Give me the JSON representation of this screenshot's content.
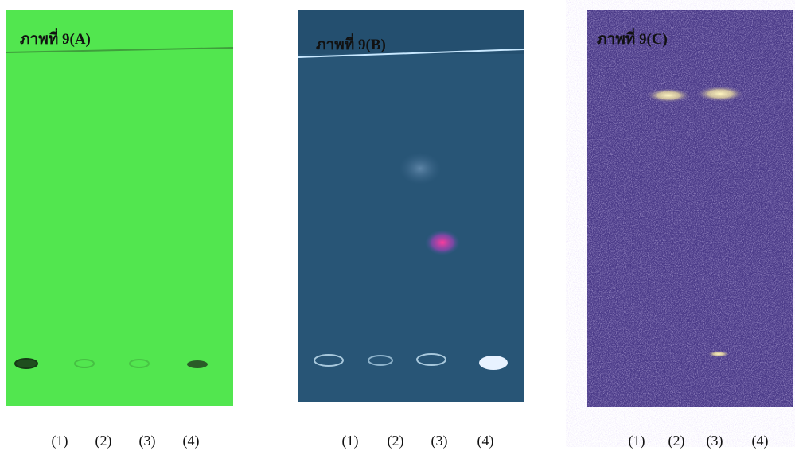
{
  "panels": [
    {
      "label": "ภาพที่ 9(A)",
      "lanes": [
        "(1)",
        "(2)",
        "(3)",
        "(4)"
      ]
    },
    {
      "label": "ภาพที่ 9(B)",
      "lanes": [
        "(1)",
        "(2)",
        "(3)",
        "(4)"
      ]
    },
    {
      "label": "ภาพที่ 9(C)",
      "lanes": [
        "(1)",
        "(2)",
        "(3)",
        "(4)"
      ]
    }
  ]
}
